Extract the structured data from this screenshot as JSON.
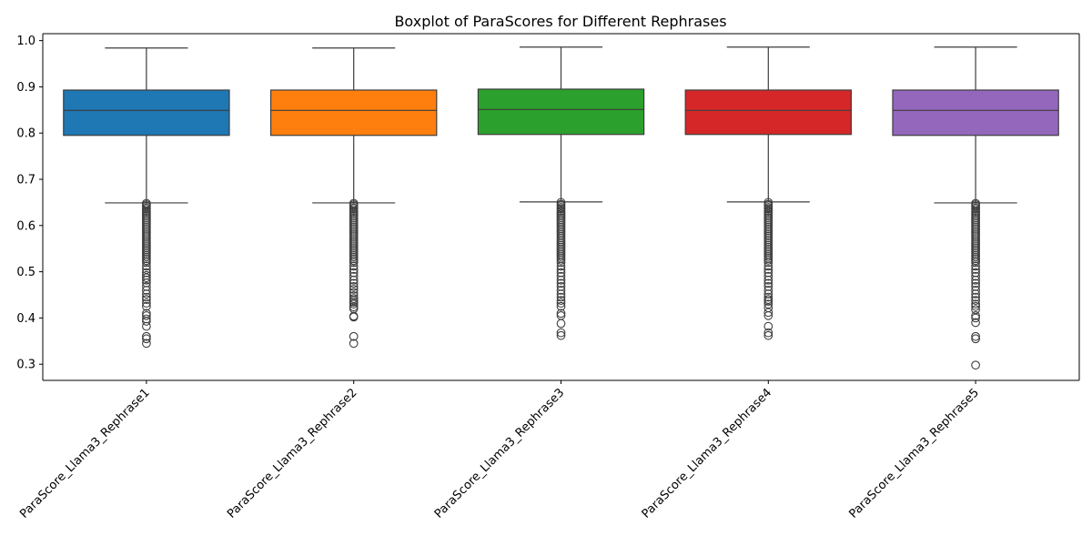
{
  "chart_data": {
    "type": "boxplot",
    "title": "Boxplot of ParaScores for Different Rephrases",
    "xlabel": "",
    "ylabel": "",
    "ylim": [
      0.265,
      1.015
    ],
    "yticks": [
      0.3,
      0.4,
      0.5,
      0.6,
      0.7,
      0.8,
      0.9,
      1.0
    ],
    "ytick_labels": [
      "0.3",
      "0.4",
      "0.5",
      "0.6",
      "0.7",
      "0.8",
      "0.9",
      "1.0"
    ],
    "grid": false,
    "legend": "none",
    "categories": [
      "ParaScore_Llama3_Rephrase1",
      "ParaScore_Llama3_Rephrase2",
      "ParaScore_Llama3_Rephrase3",
      "ParaScore_Llama3_Rephrase4",
      "ParaScore_Llama3_Rephrase5"
    ],
    "series": [
      {
        "color": "#1f77b4",
        "whisker_low": 0.649,
        "q1": 0.795,
        "median": 0.849,
        "q3": 0.893,
        "whisker_high": 0.984,
        "outliers": [
          0.648,
          0.645,
          0.642,
          0.638,
          0.635,
          0.631,
          0.628,
          0.624,
          0.62,
          0.616,
          0.612,
          0.608,
          0.604,
          0.6,
          0.596,
          0.592,
          0.588,
          0.584,
          0.58,
          0.576,
          0.572,
          0.568,
          0.564,
          0.56,
          0.556,
          0.552,
          0.548,
          0.544,
          0.54,
          0.536,
          0.532,
          0.528,
          0.524,
          0.52,
          0.512,
          0.505,
          0.498,
          0.492,
          0.487,
          0.482,
          0.476,
          0.468,
          0.46,
          0.452,
          0.445,
          0.44,
          0.432,
          0.425,
          0.41,
          0.405,
          0.398,
          0.393,
          0.382,
          0.36,
          0.355,
          0.345
        ]
      },
      {
        "color": "#ff7f0e",
        "whisker_low": 0.649,
        "q1": 0.795,
        "median": 0.849,
        "q3": 0.893,
        "whisker_high": 0.984,
        "outliers": [
          0.648,
          0.645,
          0.642,
          0.638,
          0.635,
          0.631,
          0.628,
          0.624,
          0.62,
          0.616,
          0.612,
          0.608,
          0.604,
          0.6,
          0.596,
          0.592,
          0.588,
          0.584,
          0.58,
          0.576,
          0.572,
          0.568,
          0.564,
          0.56,
          0.556,
          0.552,
          0.548,
          0.544,
          0.54,
          0.536,
          0.532,
          0.528,
          0.524,
          0.52,
          0.512,
          0.505,
          0.498,
          0.49,
          0.482,
          0.475,
          0.468,
          0.462,
          0.455,
          0.448,
          0.442,
          0.438,
          0.434,
          0.43,
          0.424,
          0.42,
          0.404,
          0.402,
          0.36,
          0.345
        ]
      },
      {
        "color": "#2ca02c",
        "whisker_low": 0.651,
        "q1": 0.797,
        "median": 0.851,
        "q3": 0.895,
        "whisker_high": 0.986,
        "outliers": [
          0.65,
          0.646,
          0.643,
          0.639,
          0.636,
          0.632,
          0.629,
          0.625,
          0.621,
          0.617,
          0.613,
          0.609,
          0.605,
          0.601,
          0.597,
          0.593,
          0.589,
          0.585,
          0.581,
          0.577,
          0.573,
          0.569,
          0.565,
          0.561,
          0.557,
          0.553,
          0.549,
          0.545,
          0.541,
          0.537,
          0.533,
          0.529,
          0.525,
          0.52,
          0.512,
          0.505,
          0.498,
          0.49,
          0.482,
          0.475,
          0.468,
          0.46,
          0.452,
          0.445,
          0.438,
          0.432,
          0.425,
          0.41,
          0.405,
          0.388,
          0.368,
          0.362
        ]
      },
      {
        "color": "#d62728",
        "whisker_low": 0.651,
        "q1": 0.797,
        "median": 0.849,
        "q3": 0.893,
        "whisker_high": 0.986,
        "outliers": [
          0.65,
          0.646,
          0.643,
          0.639,
          0.636,
          0.632,
          0.629,
          0.625,
          0.621,
          0.617,
          0.613,
          0.609,
          0.605,
          0.601,
          0.597,
          0.593,
          0.589,
          0.585,
          0.581,
          0.577,
          0.573,
          0.569,
          0.565,
          0.561,
          0.557,
          0.553,
          0.549,
          0.545,
          0.541,
          0.537,
          0.533,
          0.529,
          0.525,
          0.52,
          0.512,
          0.505,
          0.498,
          0.49,
          0.482,
          0.475,
          0.468,
          0.46,
          0.452,
          0.445,
          0.44,
          0.436,
          0.43,
          0.422,
          0.412,
          0.405,
          0.382,
          0.368,
          0.362
        ]
      },
      {
        "color": "#9467bd",
        "whisker_low": 0.649,
        "q1": 0.795,
        "median": 0.849,
        "q3": 0.893,
        "whisker_high": 0.986,
        "outliers": [
          0.648,
          0.645,
          0.642,
          0.638,
          0.635,
          0.631,
          0.628,
          0.624,
          0.62,
          0.616,
          0.612,
          0.608,
          0.604,
          0.6,
          0.596,
          0.592,
          0.588,
          0.584,
          0.58,
          0.576,
          0.572,
          0.568,
          0.564,
          0.56,
          0.556,
          0.552,
          0.548,
          0.544,
          0.54,
          0.536,
          0.532,
          0.528,
          0.524,
          0.52,
          0.512,
          0.505,
          0.498,
          0.49,
          0.482,
          0.475,
          0.468,
          0.46,
          0.452,
          0.445,
          0.438,
          0.43,
          0.425,
          0.418,
          0.405,
          0.4,
          0.39,
          0.36,
          0.355,
          0.298
        ]
      }
    ]
  }
}
